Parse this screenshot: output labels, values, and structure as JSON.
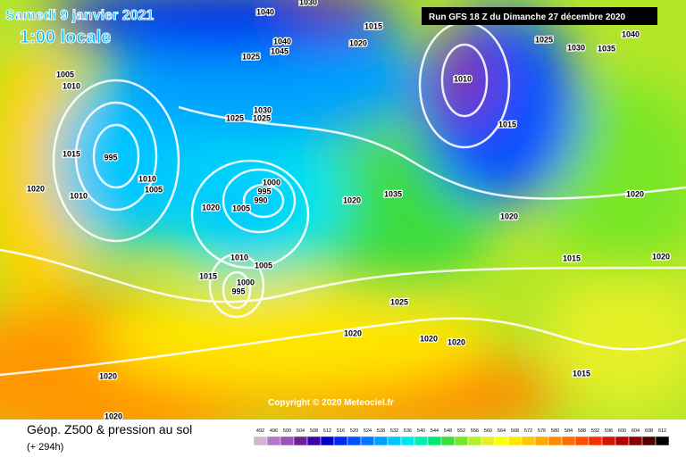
{
  "header": {
    "date": "Samedi 9 janvier 2021",
    "time": "1:00 locale",
    "run": "Run GFS 18 Z du Dimanche 27 décembre 2020"
  },
  "copyright": "Copyright © 2020 Meteociel.fr",
  "footer": {
    "title": "Géop. Z500 & pression au sol",
    "lead": "(+ 294h)"
  },
  "legend": {
    "values": [
      492,
      496,
      500,
      504,
      508,
      512,
      516,
      520,
      524,
      528,
      532,
      536,
      540,
      544,
      548,
      552,
      556,
      560,
      564,
      568,
      572,
      576,
      580,
      584,
      588,
      592,
      596,
      600,
      604,
      608,
      612
    ],
    "colors": [
      "#d2b4d2",
      "#b478c8",
      "#a050b4",
      "#6e1e96",
      "#3c00aa",
      "#0000c8",
      "#0028f0",
      "#0050ff",
      "#0078ff",
      "#00a0ff",
      "#00c8ff",
      "#00e6f0",
      "#00f0b4",
      "#00e678",
      "#3cdc3c",
      "#78e628",
      "#b4f028",
      "#e6f028",
      "#ffff00",
      "#ffe600",
      "#ffc800",
      "#ffaa00",
      "#ff8c00",
      "#ff6e00",
      "#ff5000",
      "#f03200",
      "#d21400",
      "#b40000",
      "#8c0000",
      "#500000",
      "#000000"
    ]
  },
  "isobar_labels": [
    "1040",
    "1030",
    "1040",
    "1045",
    "1020",
    "1015",
    "1025",
    "1005",
    "1010",
    "1010",
    "1015",
    "1025",
    "1030",
    "1035",
    "1040",
    "995",
    "1015",
    "1020",
    "1010",
    "1010",
    "1005",
    "1025",
    "1030",
    "1025",
    "1000",
    "995",
    "990",
    "1005",
    "1020",
    "1020",
    "1035",
    "1020",
    "1020",
    "1010",
    "1005",
    "1015",
    "1000",
    "995",
    "1015",
    "1025",
    "1020",
    "1020",
    "1020",
    "1015",
    "1020",
    "1020",
    "1020"
  ]
}
